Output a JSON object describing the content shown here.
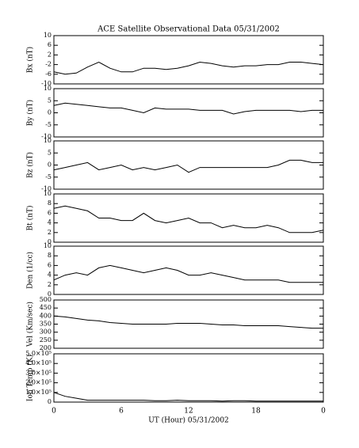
{
  "chart_data": [
    {
      "type": "line",
      "title": "ACE Satellite Observational Data   05/31/2002",
      "ylabel": "Bx (nT)",
      "color": "#000000",
      "x": [
        0,
        1,
        2,
        3,
        4,
        5,
        6,
        7,
        8,
        9,
        10,
        11,
        12,
        13,
        14,
        15,
        16,
        17,
        18,
        19,
        20,
        21,
        22,
        23,
        24
      ],
      "xlim": [
        0,
        24
      ],
      "values": [
        -5,
        -6,
        -5.5,
        -3,
        -1,
        -3.5,
        -5,
        -5,
        -3.5,
        -3.5,
        -4,
        -3.5,
        -2.5,
        -1,
        -1.5,
        -2.5,
        -3,
        -2.5,
        -2.5,
        -2,
        -2,
        -1,
        -1,
        -1.5,
        -2
      ],
      "ylim": [
        -10,
        10
      ],
      "yticks": [
        -10,
        -6,
        -2,
        2,
        6,
        10
      ]
    },
    {
      "type": "line",
      "ylabel": "By (nT)",
      "color": "#000000",
      "x": [
        0,
        1,
        2,
        3,
        4,
        5,
        6,
        7,
        8,
        9,
        10,
        11,
        12,
        13,
        14,
        15,
        16,
        17,
        18,
        19,
        20,
        21,
        22,
        23,
        24
      ],
      "xlim": [
        0,
        24
      ],
      "values": [
        3,
        4,
        3.5,
        3,
        2.5,
        2,
        2,
        1,
        0,
        2,
        1.5,
        1.5,
        1.5,
        1,
        1,
        1,
        -0.5,
        0.5,
        1,
        1,
        1,
        1,
        0.5,
        1,
        1
      ],
      "ylim": [
        -10,
        10
      ],
      "yticks": [
        -10,
        -5,
        0,
        5,
        10
      ]
    },
    {
      "type": "line",
      "ylabel": "Bz (nT)",
      "color": "#000000",
      "x": [
        0,
        1,
        2,
        3,
        4,
        5,
        6,
        7,
        8,
        9,
        10,
        11,
        12,
        13,
        14,
        15,
        16,
        17,
        18,
        19,
        20,
        21,
        22,
        23,
        24
      ],
      "xlim": [
        0,
        24
      ],
      "values": [
        -2,
        -1,
        0,
        1,
        -2,
        -1,
        0,
        -2,
        -1,
        -2,
        -1,
        0,
        -3,
        -1,
        -1,
        -1,
        -1,
        -1,
        -1,
        -1,
        0,
        2,
        2,
        1,
        1
      ],
      "ylim": [
        -10,
        10
      ],
      "yticks": [
        -10,
        -5,
        0,
        5,
        10
      ]
    },
    {
      "type": "line",
      "ylabel": "Bt (nT)",
      "color": "#000000",
      "x": [
        0,
        1,
        2,
        3,
        4,
        5,
        6,
        7,
        8,
        9,
        10,
        11,
        12,
        13,
        14,
        15,
        16,
        17,
        18,
        19,
        20,
        21,
        22,
        23,
        24
      ],
      "xlim": [
        0,
        24
      ],
      "values": [
        7,
        7.5,
        7,
        6.5,
        5,
        5,
        4.5,
        4.5,
        6,
        4.5,
        4,
        4.5,
        5,
        4,
        4,
        3,
        3.5,
        3,
        3,
        3.5,
        3,
        2,
        2,
        2,
        2.5
      ],
      "ylim": [
        0,
        10
      ],
      "yticks": [
        0,
        2,
        4,
        6,
        8,
        10
      ]
    },
    {
      "type": "line",
      "ylabel": "Den (1/cc)",
      "color": "#000000",
      "x": [
        0,
        1,
        2,
        3,
        4,
        5,
        6,
        7,
        8,
        9,
        10,
        11,
        12,
        13,
        14,
        15,
        16,
        17,
        18,
        19,
        20,
        21,
        22,
        23,
        24
      ],
      "xlim": [
        0,
        24
      ],
      "values": [
        3,
        4,
        4.5,
        4,
        5.5,
        6,
        5.5,
        5,
        4.5,
        5,
        5.5,
        5,
        4,
        4,
        4.5,
        4,
        3.5,
        3,
        3,
        3,
        3,
        2.5,
        2.5,
        2.5,
        2.5
      ],
      "ylim": [
        0,
        10
      ],
      "yticks": [
        0,
        2,
        4,
        6,
        8,
        10
      ]
    },
    {
      "type": "line",
      "ylabel": "Vel (Km/sec)",
      "color": "#000000",
      "x": [
        0,
        1,
        2,
        3,
        4,
        5,
        6,
        7,
        8,
        9,
        10,
        11,
        12,
        13,
        14,
        15,
        16,
        17,
        18,
        19,
        20,
        21,
        22,
        23,
        24
      ],
      "xlim": [
        0,
        24
      ],
      "values": [
        400,
        395,
        385,
        375,
        370,
        360,
        355,
        350,
        350,
        350,
        350,
        355,
        355,
        355,
        350,
        345,
        345,
        340,
        340,
        340,
        340,
        335,
        330,
        325,
        325
      ],
      "ylim": [
        200,
        500
      ],
      "yticks": [
        200,
        250,
        300,
        350,
        400,
        450,
        500
      ]
    },
    {
      "type": "line",
      "ylabel": "Ion Temp (K)",
      "xlabel": "UT (Hour)  05/31/2002",
      "color": "#000000",
      "x": [
        0,
        1,
        2,
        3,
        4,
        5,
        6,
        7,
        8,
        9,
        10,
        11,
        12,
        13,
        14,
        15,
        16,
        17,
        18,
        19,
        20,
        21,
        22,
        23,
        24
      ],
      "xlim": [
        0,
        24
      ],
      "xticks": [
        0,
        6,
        12,
        18,
        {
          "value": 24,
          "label": "0"
        }
      ],
      "values": [
        100000,
        60000,
        40000,
        20000,
        20000,
        20000,
        20000,
        20000,
        20000,
        15000,
        15000,
        20000,
        15000,
        15000,
        15000,
        10000,
        15000,
        15000,
        10000,
        10000,
        10000,
        10000,
        10000,
        10000,
        10000
      ],
      "ylim": [
        0,
        500000
      ],
      "yticks": [
        0,
        {
          "value": 100000,
          "label": "1.0×10⁵"
        },
        {
          "value": 200000,
          "label": "2.0×10⁵"
        },
        {
          "value": 300000,
          "label": "3.0×10⁵"
        },
        {
          "value": 400000,
          "label": "4.0×10⁵"
        },
        {
          "value": 500000,
          "label": "5.0×10⁵"
        }
      ]
    }
  ]
}
